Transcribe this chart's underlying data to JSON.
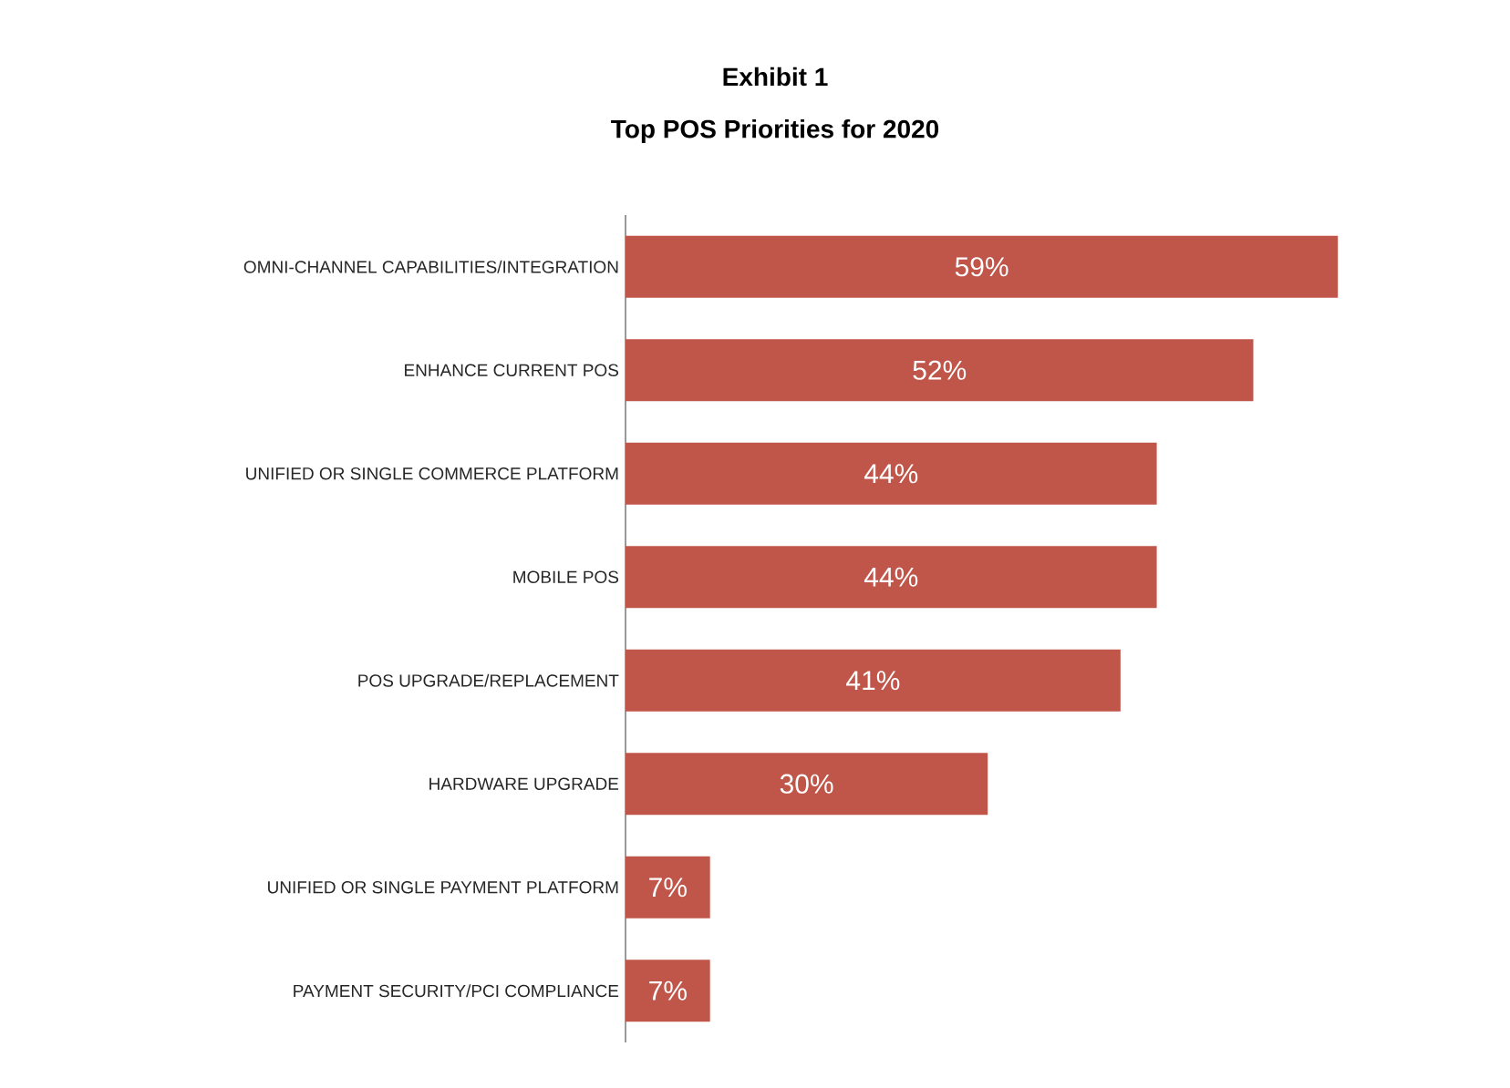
{
  "chart_data": {
    "type": "bar",
    "orientation": "horizontal",
    "title": "Exhibit 1",
    "subtitle": "Top POS Priorities for 2020",
    "categories": [
      "OMNI-CHANNEL CAPABILITIES/INTEGRATION",
      "ENHANCE CURRENT POS",
      "UNIFIED OR SINGLE COMMERCE PLATFORM",
      "MOBILE POS",
      "POS UPGRADE/REPLACEMENT",
      "HARDWARE UPGRADE",
      "UNIFIED OR SINGLE PAYMENT PLATFORM",
      "PAYMENT SECURITY/PCI COMPLIANCE"
    ],
    "values": [
      59,
      52,
      44,
      44,
      41,
      30,
      7,
      7
    ],
    "value_labels": [
      "59%",
      "52%",
      "44%",
      "44%",
      "41%",
      "30%",
      "7%",
      "7%"
    ],
    "color": "#c0564a"
  }
}
